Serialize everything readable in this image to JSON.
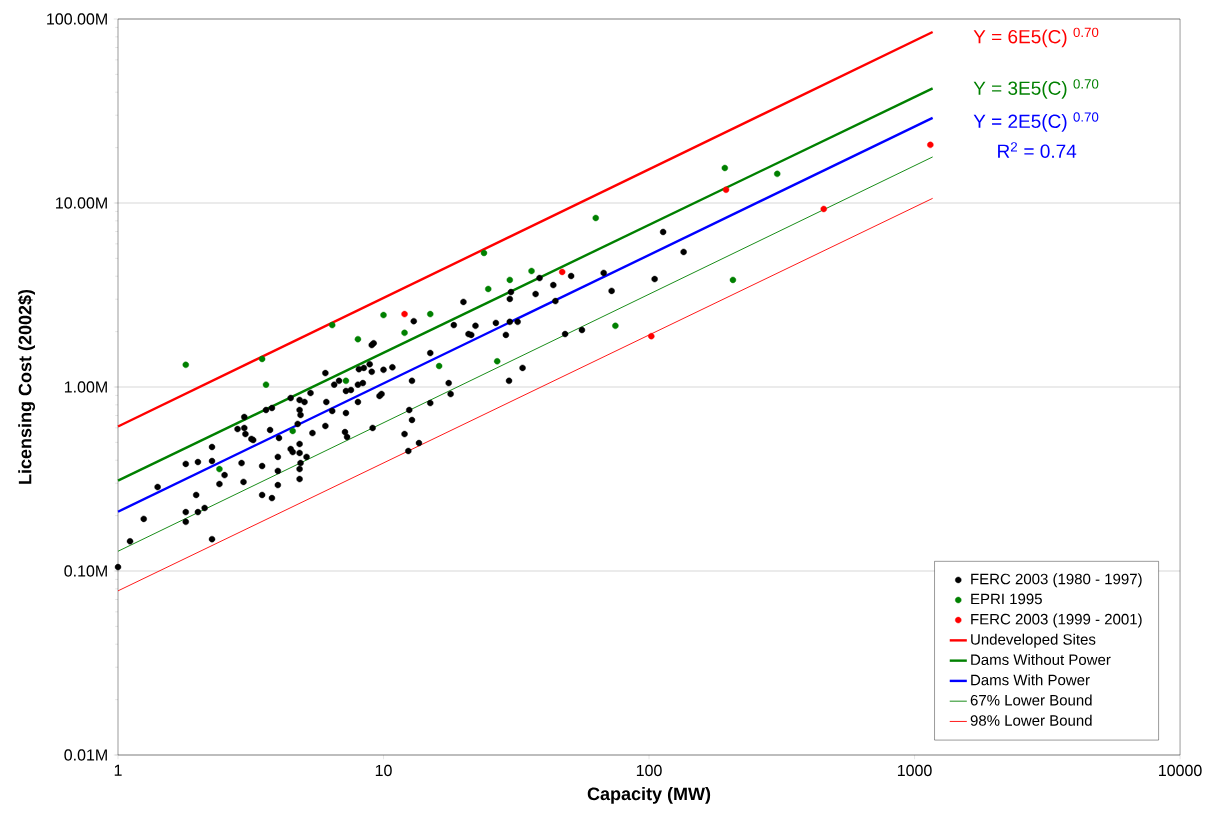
{
  "chart_data": {
    "type": "scatter",
    "xlabel": "Capacity (MW)",
    "ylabel": "Licensing Cost (2002$)",
    "log": "xy",
    "grid": "y",
    "legend": "bottom right",
    "xlim": [
      1,
      10000
    ],
    "xticks": [
      1,
      10,
      100,
      1000,
      10000
    ],
    "ylim": [
      0.01,
      100
    ],
    "yticks": [
      {
        "value": 0.01,
        "label": "0.01M"
      },
      {
        "value": 0.1,
        "label": "0.10M"
      },
      {
        "value": 1,
        "label": "1.00M"
      },
      {
        "value": 10,
        "label": "10.00M"
      },
      {
        "value": 100,
        "label": "100.00M"
      }
    ],
    "annotations": [
      "Y = 6E5(C) $^{0.70}$",
      "Y = 3E5(C) $^{0.70}$",
      "Y = 2E5(C) $^{0.70}$",
      "R$^{2}$ = 0.74"
    ],
    "series": [
      {
        "name": "FERC 2003 (1980 - 1997)",
        "marker": "circle",
        "color": "#000000",
        "x": [
          1.0,
          1.11,
          1.25,
          1.41,
          1.8,
          2.0,
          2.26,
          2.26,
          1.8,
          1.8,
          1.97,
          2.0,
          2.12,
          2.26,
          2.41,
          2.52,
          2.82,
          2.99,
          3.02,
          2.92,
          2.97,
          3.18,
          3.23,
          3.49,
          3.49,
          3.74,
          3.8,
          4.0,
          4.0,
          4.0,
          4.04,
          3.61,
          3.8,
          4.47,
          4.83,
          5.04,
          4.83,
          4.87,
          4.75,
          4.47,
          4.55,
          4.83,
          4.83,
          4.87,
          4.83,
          4.83,
          5.13,
          2.99,
          5.31,
          5.4,
          6.04,
          6.52,
          6.8,
          7.22,
          7.54,
          8.01,
          8.36,
          8.08,
          8.43,
          8.87,
          9.03,
          10.0,
          10.8,
          9.18,
          9.03,
          9.66,
          9.83,
          8.01,
          7.22,
          6.41,
          6.09,
          6.04,
          7.16,
          7.29,
          9.1,
          13.0,
          20.0,
          15.0,
          18.4,
          20.9,
          21.4,
          22.2,
          26.5,
          28.9,
          29.9,
          32.0,
          29.9,
          30.2,
          37.4,
          38.7,
          43.6,
          44.4,
          50.9,
          48.3,
          55.9,
          33.4,
          29.7,
          17.6,
          17.9,
          12.8,
          15.0,
          12.5,
          12.8,
          12.0,
          13.6,
          12.4,
          67.5,
          72.3,
          105,
          113,
          135
        ],
        "values": [
          0.105,
          0.145,
          0.192,
          0.286,
          0.382,
          0.391,
          0.472,
          0.396,
          0.209,
          0.185,
          0.259,
          0.209,
          0.22,
          0.149,
          0.297,
          0.332,
          0.591,
          0.599,
          0.555,
          0.386,
          0.305,
          0.522,
          0.515,
          0.259,
          0.372,
          0.584,
          0.249,
          0.417,
          0.35,
          0.293,
          0.528,
          0.75,
          0.769,
          0.871,
          0.85,
          0.829,
          0.75,
          0.705,
          0.63,
          0.46,
          0.443,
          0.49,
          0.438,
          0.386,
          0.358,
          0.316,
          0.417,
          0.687,
          0.928,
          0.562,
          1.19,
          1.03,
          1.08,
          0.951,
          0.963,
          1.03,
          1.05,
          1.25,
          1.27,
          1.33,
          1.21,
          1.24,
          1.28,
          1.73,
          1.69,
          0.894,
          0.916,
          0.829,
          0.722,
          0.741,
          0.829,
          0.614,
          0.569,
          0.535,
          0.599,
          2.28,
          2.9,
          1.53,
          2.17,
          1.94,
          1.92,
          2.15,
          2.23,
          1.92,
          2.26,
          2.26,
          3.01,
          3.28,
          3.2,
          3.91,
          3.58,
          2.93,
          4.01,
          1.94,
          2.04,
          1.27,
          1.08,
          1.05,
          0.916,
          1.08,
          0.818,
          0.75,
          0.662,
          0.555,
          0.496,
          0.449,
          4.17,
          3.33,
          3.86,
          6.96,
          5.42
        ]
      },
      {
        "name": "EPRI 1995",
        "marker": "circle",
        "color": "#008000",
        "x": [
          1.8,
          3.49,
          3.61,
          2.41,
          4.55,
          6.41,
          8.01,
          10.0,
          12.0,
          15.0,
          23.9,
          24.8,
          29.9,
          36.1,
          7.22,
          16.2,
          26.8,
          63.0,
          193,
          304,
          207,
          74.7
        ],
        "values": [
          1.32,
          1.42,
          1.03,
          0.358,
          0.577,
          2.17,
          1.82,
          2.46,
          1.97,
          2.49,
          5.35,
          3.41,
          3.82,
          4.27,
          1.08,
          1.3,
          1.38,
          8.29,
          15.5,
          14.4,
          3.82,
          2.15
        ]
      },
      {
        "name": "FERC 2003 (1999 - 2001)",
        "marker": "circle",
        "color": "#ff0000",
        "x": [
          12.0,
          47.1,
          195,
          102,
          455,
          1147
        ],
        "values": [
          2.49,
          4.22,
          11.8,
          1.89,
          9.28,
          20.7
        ]
      },
      {
        "name": "Undeveloped Sites",
        "type": "line",
        "marker": "none",
        "color": "#ff0000",
        "x": [
          1,
          1170
        ],
        "values": [
          0.61,
          85
        ]
      },
      {
        "name": "Dams Without Power",
        "type": "line",
        "marker": "none",
        "color": "#008000",
        "x": [
          1,
          1170
        ],
        "values": [
          0.31,
          42
        ]
      },
      {
        "name": "Dams With Power",
        "type": "line",
        "marker": "none",
        "color": "#0000ff",
        "x": [
          1,
          1170
        ],
        "values": [
          0.21,
          29
        ]
      },
      {
        "name": "67% Lower Bound",
        "type": "line",
        "marker": "none",
        "color": "#008000",
        "x": [
          1,
          1170
        ],
        "values": [
          0.128,
          17.8
        ]
      },
      {
        "name": "98% Lower Bound",
        "type": "line",
        "marker": "none",
        "color": "#ff0000",
        "x": [
          1,
          1170
        ],
        "values": [
          0.078,
          10.6
        ]
      }
    ]
  }
}
